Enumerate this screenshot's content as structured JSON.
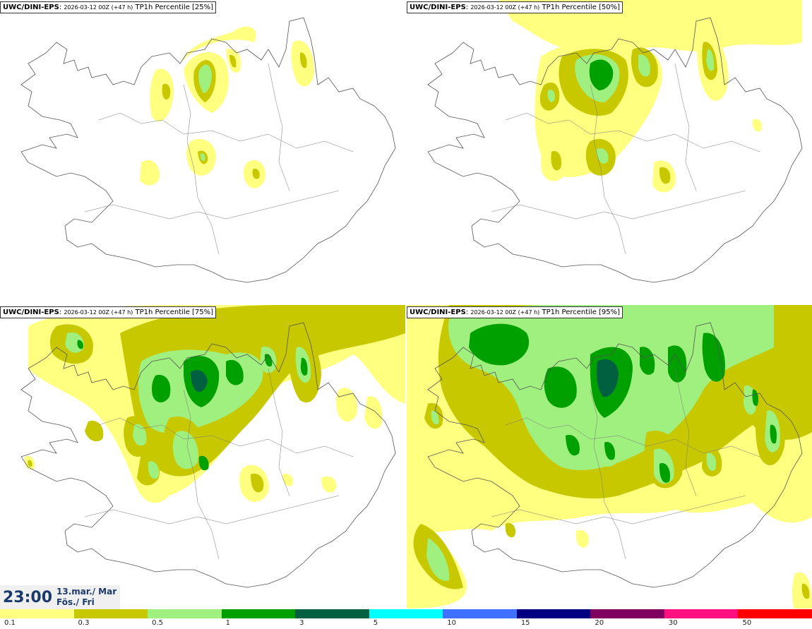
{
  "panels": [
    {
      "model": "UWC/DINI-EPS",
      "run": "2026-03-12 00Z (+47 h)",
      "param": "TP1h Percentile [25%]"
    },
    {
      "model": "UWC/DINI-EPS",
      "run": "2026-03-12 00Z (+47 h)",
      "param": "TP1h Percentile [50%]"
    },
    {
      "model": "UWC/DINI-EPS",
      "run": "2026-03-12 00Z (+47 h)",
      "param": "TP1h Percentile [75%]"
    },
    {
      "model": "UWC/DINI-EPS",
      "run": "2026-03-12 00Z (+47 h)",
      "param": "TP1h Percentile [95%]"
    }
  ],
  "valid_time": {
    "time": "23:00",
    "date": "13.mar./ Mar",
    "day": "Fös./ Fri"
  },
  "colorbar": {
    "ticks": [
      "0.1",
      "0.3",
      "0.5",
      "1",
      "3",
      "5",
      "10",
      "15",
      "20",
      "30",
      "50"
    ],
    "colors": [
      "#ffff80",
      "#c8c800",
      "#a0f080",
      "#00a000",
      "#006040",
      "#00ffff",
      "#4070ff",
      "#000080",
      "#800060",
      "#ff1080",
      "#ff0000"
    ]
  }
}
